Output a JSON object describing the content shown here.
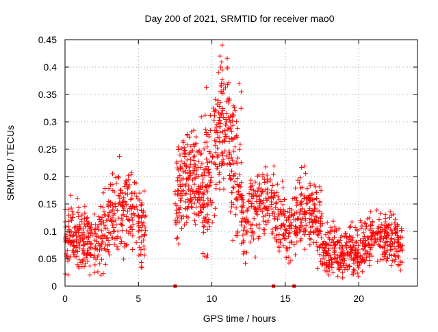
{
  "chart_data": {
    "type": "scatter",
    "title": "Day 200 of 2021, SRMTID for receiver mao0",
    "xlabel": "GPS time / hours",
    "ylabel": "SRMTID / TECUs",
    "xlim": [
      0,
      24
    ],
    "ylim": [
      0,
      0.45
    ],
    "x_ticks": [
      0,
      5,
      10,
      15,
      20
    ],
    "x_tick_labels": [
      "0",
      "5",
      "10",
      "15",
      "20"
    ],
    "y_ticks": [
      0,
      0.05,
      0.1,
      0.15,
      0.2,
      0.25,
      0.3,
      0.35,
      0.4,
      0.45
    ],
    "y_tick_labels": [
      "0",
      "0.05",
      "0.1",
      "0.15",
      "0.2",
      "0.25",
      "0.3",
      "0.35",
      "0.4",
      "0.45"
    ],
    "grid": true,
    "marker": "+",
    "color": "#ff0000",
    "zero_markers_x": [
      7.5,
      14.2,
      15.6
    ],
    "series": [
      {
        "name": "SRMTID",
        "segments": [
          {
            "x_start": 0.0,
            "x_end": 2.5,
            "count": 220,
            "center": 0.082,
            "spread": 0.028,
            "peak": 0.0
          },
          {
            "x_start": 2.5,
            "x_end": 5.5,
            "count": 230,
            "center": 0.105,
            "spread": 0.035,
            "peak": 0.06
          },
          {
            "x_start": 7.5,
            "x_end": 9.5,
            "count": 220,
            "center": 0.165,
            "spread": 0.045,
            "peak": 0.06
          },
          {
            "x_start": 9.5,
            "x_end": 12.0,
            "count": 260,
            "center": 0.185,
            "spread": 0.06,
            "peak": 0.16
          },
          {
            "x_start": 12.0,
            "x_end": 15.0,
            "count": 230,
            "center": 0.12,
            "spread": 0.035,
            "peak": 0.05
          },
          {
            "x_start": 15.0,
            "x_end": 17.5,
            "count": 220,
            "center": 0.105,
            "spread": 0.032,
            "peak": 0.04
          },
          {
            "x_start": 17.5,
            "x_end": 20.0,
            "count": 220,
            "center": 0.065,
            "spread": 0.022,
            "peak": 0.0
          },
          {
            "x_start": 20.0,
            "x_end": 23.0,
            "count": 240,
            "center": 0.072,
            "spread": 0.022,
            "peak": 0.03
          }
        ],
        "notable_points": [
          {
            "x": 10.7,
            "y": 0.44
          },
          {
            "x": 10.55,
            "y": 0.42
          },
          {
            "x": 10.6,
            "y": 0.4
          },
          {
            "x": 10.65,
            "y": 0.37
          },
          {
            "x": 11.85,
            "y": 0.37
          },
          {
            "x": 12.0,
            "y": 0.355
          },
          {
            "x": 10.1,
            "y": 0.325
          },
          {
            "x": 11.3,
            "y": 0.31
          },
          {
            "x": 3.7,
            "y": 0.237
          },
          {
            "x": 2.45,
            "y": 0.02
          },
          {
            "x": 18.9,
            "y": 0.015
          }
        ]
      }
    ]
  }
}
